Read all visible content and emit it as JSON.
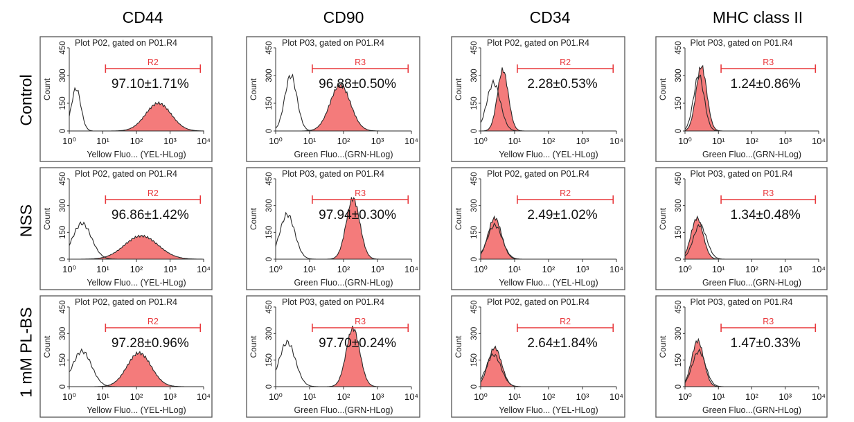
{
  "columns": [
    "CD44",
    "CD90",
    "CD34",
    "MHC class II"
  ],
  "rows": [
    "Control",
    "NSS",
    "1 mM PL-BS"
  ],
  "colors": {
    "fill": "#f47b7b",
    "outline": "#2a2a2a",
    "gate": "#e8383c",
    "frame": "#555555"
  },
  "chart_data": [
    {
      "type": "area",
      "row": "Control",
      "marker": "CD44",
      "title": "Plot P02, gated on P01.R4",
      "xlabel": "Yellow Fluo... (YEL-HLog)",
      "ylabel": "Count",
      "gate": "R2",
      "gate_range": [
        12,
        8000
      ],
      "value": "97.10±1.71%",
      "yticks": [
        "0",
        "150",
        "300",
        "450"
      ],
      "xticks": [
        "10⁰",
        "10¹",
        "10²",
        "10³",
        "10⁴"
      ],
      "xlim": [
        1,
        10000
      ],
      "ylim": [
        0,
        450
      ],
      "scale": "log",
      "open_peak": {
        "center": 1.6,
        "height": 230,
        "width": 0.14
      },
      "filled_peak": {
        "center": 450,
        "height": 150,
        "width": 0.38
      }
    },
    {
      "type": "area",
      "row": "Control",
      "marker": "CD90",
      "title": "Plot P03, gated on P01.R4",
      "xlabel": "Green Fluo...(GRN-HLog)",
      "ylabel": "Count",
      "gate": "R3",
      "gate_range": [
        12,
        8000
      ],
      "value": "96.88±0.50%",
      "yticks": [
        "0",
        "150",
        "300",
        "450"
      ],
      "xticks": [
        "10⁰",
        "10¹",
        "10²",
        "10³",
        "10⁴"
      ],
      "xlim": [
        1,
        10000
      ],
      "ylim": [
        0,
        450
      ],
      "scale": "log",
      "open_peak": {
        "center": 2.8,
        "height": 300,
        "width": 0.18
      },
      "filled_peak": {
        "center": 80,
        "height": 250,
        "width": 0.3
      }
    },
    {
      "type": "area",
      "row": "Control",
      "marker": "CD34",
      "title": "Plot P02, gated on P01.R4",
      "xlabel": "Yellow Fluo... (YEL-HLog)",
      "ylabel": "Count",
      "gate": "R2",
      "gate_range": [
        12,
        8000
      ],
      "value": "2.28±0.53%",
      "yticks": [
        "0",
        "150",
        "300",
        "450"
      ],
      "xticks": [
        "10⁰",
        "10¹",
        "10²",
        "10³",
        "10⁴"
      ],
      "xlim": [
        1,
        10000
      ],
      "ylim": [
        0,
        450
      ],
      "scale": "log",
      "open_peak": {
        "center": 2.4,
        "height": 260,
        "width": 0.2
      },
      "filled_peak": {
        "center": 4.5,
        "height": 330,
        "width": 0.16
      }
    },
    {
      "type": "area",
      "row": "Control",
      "marker": "MHC class II",
      "title": "Plot P03, gated on P01.R4",
      "xlabel": "Green Fluo...(GRN-HLog)",
      "ylabel": "Count",
      "gate": "R3",
      "gate_range": [
        12,
        8000
      ],
      "value": "1.24±0.86%",
      "yticks": [
        "0",
        "150",
        "300",
        "450"
      ],
      "xticks": [
        "10⁰",
        "10¹",
        "10²",
        "10³",
        "10⁴"
      ],
      "xlim": [
        1,
        10000
      ],
      "ylim": [
        0,
        450
      ],
      "scale": "log",
      "open_peak": {
        "center": 2.6,
        "height": 300,
        "width": 0.16
      },
      "filled_peak": {
        "center": 3.1,
        "height": 350,
        "width": 0.16
      }
    },
    {
      "type": "area",
      "row": "NSS",
      "marker": "CD44",
      "title": "Plot P02, gated on P01.R4",
      "xlabel": "Yellow Fluo... (YEL-HLog)",
      "ylabel": "Count",
      "gate": "R2",
      "gate_range": [
        12,
        8000
      ],
      "value": "96.86±1.42%",
      "yticks": [
        "0",
        "150",
        "300",
        "450"
      ],
      "xticks": [
        "10⁰",
        "10¹",
        "10²",
        "10³",
        "10⁴"
      ],
      "xlim": [
        1,
        10000
      ],
      "ylim": [
        0,
        450
      ],
      "scale": "log",
      "open_peak": {
        "center": 2.4,
        "height": 200,
        "width": 0.28
      },
      "filled_peak": {
        "center": 140,
        "height": 130,
        "width": 0.5
      }
    },
    {
      "type": "area",
      "row": "NSS",
      "marker": "CD90",
      "title": "Plot P03, gated on P01.R4",
      "xlabel": "Green Fluo...(GRN-HLog)",
      "ylabel": "Count",
      "gate": "R3",
      "gate_range": [
        12,
        8000
      ],
      "value": "97.94±0.30%",
      "yticks": [
        "0",
        "150",
        "300",
        "450"
      ],
      "xticks": [
        "10⁰",
        "10¹",
        "10²",
        "10³",
        "10⁴"
      ],
      "xlim": [
        1,
        10000
      ],
      "ylim": [
        0,
        450
      ],
      "scale": "log",
      "open_peak": {
        "center": 2.2,
        "height": 250,
        "width": 0.22
      },
      "filled_peak": {
        "center": 190,
        "height": 340,
        "width": 0.2
      }
    },
    {
      "type": "area",
      "row": "NSS",
      "marker": "CD34",
      "title": "Plot P02, gated on P01.R4",
      "xlabel": "Yellow Fluo... (YEL-HLog)",
      "ylabel": "Count",
      "gate": "R2",
      "gate_range": [
        12,
        8000
      ],
      "value": "2.49±1.02%",
      "yticks": [
        "0",
        "150",
        "300",
        "450"
      ],
      "xticks": [
        "10⁰",
        "10¹",
        "10²",
        "10³",
        "10⁴"
      ],
      "xlim": [
        1,
        10000
      ],
      "ylim": [
        0,
        450
      ],
      "scale": "log",
      "open_peak": {
        "center": 2.6,
        "height": 190,
        "width": 0.22
      },
      "filled_peak": {
        "center": 2.6,
        "height": 230,
        "width": 0.2
      }
    },
    {
      "type": "area",
      "row": "NSS",
      "marker": "MHC class II",
      "title": "Plot P03, gated on P01.R4",
      "xlabel": "Green Fluo...(GRN-HLog)",
      "ylabel": "Count",
      "gate": "R3",
      "gate_range": [
        12,
        8000
      ],
      "value": "1.34±0.48%",
      "yticks": [
        "0",
        "150",
        "300",
        "450"
      ],
      "xticks": [
        "10⁰",
        "10¹",
        "10²",
        "10³",
        "10⁴"
      ],
      "xlim": [
        1,
        10000
      ],
      "ylim": [
        0,
        450
      ],
      "scale": "log",
      "open_peak": {
        "center": 2.8,
        "height": 190,
        "width": 0.2
      },
      "filled_peak": {
        "center": 2.3,
        "height": 230,
        "width": 0.18
      }
    },
    {
      "type": "area",
      "row": "1 mM PL-BS",
      "marker": "CD44",
      "title": "Plot P02, gated on P01.R4",
      "xlabel": "Yellow Fluo... (YEL-HLog)",
      "ylabel": "Count",
      "gate": "R2",
      "gate_range": [
        12,
        8000
      ],
      "value": "97.28±0.96%",
      "yticks": [
        "0",
        "150",
        "300",
        "450"
      ],
      "xticks": [
        "10⁰",
        "10¹",
        "10²",
        "10³",
        "10⁴"
      ],
      "xlim": [
        1,
        10000
      ],
      "ylim": [
        0,
        450
      ],
      "scale": "log",
      "open_peak": {
        "center": 2.4,
        "height": 200,
        "width": 0.28
      },
      "filled_peak": {
        "center": 120,
        "height": 190,
        "width": 0.36
      }
    },
    {
      "type": "area",
      "row": "1 mM PL-BS",
      "marker": "CD90",
      "title": "Plot P03, gated on P01.R4",
      "xlabel": "Green Fluo...(GRN-HLog)",
      "ylabel": "Count",
      "gate": "R3",
      "gate_range": [
        12,
        8000
      ],
      "value": "97.70±0.24%",
      "yticks": [
        "0",
        "150",
        "300",
        "450"
      ],
      "xticks": [
        "10⁰",
        "10¹",
        "10²",
        "10³",
        "10⁴"
      ],
      "xlim": [
        1,
        10000
      ],
      "ylim": [
        0,
        450
      ],
      "scale": "log",
      "open_peak": {
        "center": 2.2,
        "height": 250,
        "width": 0.24
      },
      "filled_peak": {
        "center": 190,
        "height": 330,
        "width": 0.2
      }
    },
    {
      "type": "area",
      "row": "1 mM PL-BS",
      "marker": "CD34",
      "title": "Plot P02, gated on P01.R4",
      "xlabel": "Yellow Fluo... (YEL-HLog)",
      "ylabel": "Count",
      "gate": "R2",
      "gate_range": [
        12,
        8000
      ],
      "value": "2.64±1.84%",
      "yticks": [
        "0",
        "150",
        "300",
        "450"
      ],
      "xticks": [
        "10⁰",
        "10¹",
        "10²",
        "10³",
        "10⁴"
      ],
      "xlim": [
        1,
        10000
      ],
      "ylim": [
        0,
        450
      ],
      "scale": "log",
      "open_peak": {
        "center": 2.4,
        "height": 180,
        "width": 0.22
      },
      "filled_peak": {
        "center": 2.6,
        "height": 220,
        "width": 0.2
      }
    },
    {
      "type": "area",
      "row": "1 mM PL-BS",
      "marker": "MHC class II",
      "title": "Plot P03, gated on P01.R4",
      "xlabel": "Green Fluo...(GRN-HLog)",
      "ylabel": "Count",
      "gate": "R3",
      "gate_range": [
        12,
        8000
      ],
      "value": "1.47±0.33%",
      "yticks": [
        "0",
        "150",
        "300",
        "450"
      ],
      "xticks": [
        "10⁰",
        "10¹",
        "10²",
        "10³",
        "10⁴"
      ],
      "xlim": [
        1,
        10000
      ],
      "ylim": [
        0,
        450
      ],
      "scale": "log",
      "open_peak": {
        "center": 2.6,
        "height": 200,
        "width": 0.2
      },
      "filled_peak": {
        "center": 2.4,
        "height": 260,
        "width": 0.18
      }
    }
  ]
}
